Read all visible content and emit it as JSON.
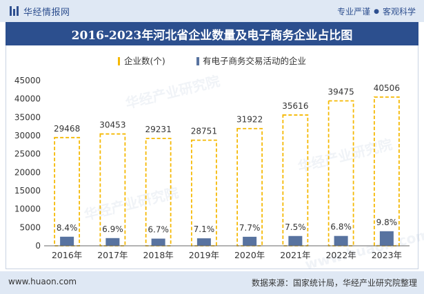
{
  "header": {
    "brand": "华经情报网",
    "tagline_left": "专业严谨",
    "tagline_right": "客观科学"
  },
  "title": "2016-2023年河北省企业数量及电子商务企业占比图",
  "footer": {
    "url": "www.huaon.com",
    "source": "数据来源：国家统计局，华经产业研究院整理"
  },
  "watermarks": [
    "华经产业研究院",
    "www.huaon.com"
  ],
  "colors": {
    "bar_outline": "#f5b800",
    "ecommerce_bar": "#5873a0",
    "title_bg": "#2c4f8e",
    "header_bg": "#dfe8f4"
  },
  "chart_data": {
    "type": "bar",
    "categories": [
      "2016年",
      "2017年",
      "2018年",
      "2019年",
      "2020年",
      "2021年",
      "2022年",
      "2023年"
    ],
    "series": [
      {
        "name": "企业数(个)",
        "values": [
          29468,
          30453,
          29231,
          28751,
          31922,
          35616,
          39475,
          40506
        ],
        "labels": [
          "29468",
          "30453",
          "29231",
          "28751",
          "31922",
          "35616",
          "39475",
          "40506"
        ]
      },
      {
        "name": "有电子商务交易活动的企业",
        "values": [
          2475,
          2101,
          1958,
          2041,
          2458,
          2671,
          2684,
          3970
        ],
        "share_labels": [
          "8.4%",
          "6.9%",
          "6.7%",
          "7.1%",
          "7.7%",
          "7.5%",
          "6.8%",
          "9.8%"
        ]
      }
    ],
    "yticks": [
      "0",
      "5000",
      "10000",
      "15000",
      "20000",
      "25000",
      "30000",
      "35000",
      "40000",
      "45000"
    ],
    "ylim": [
      0,
      45000
    ],
    "legend_position": "top-center"
  }
}
